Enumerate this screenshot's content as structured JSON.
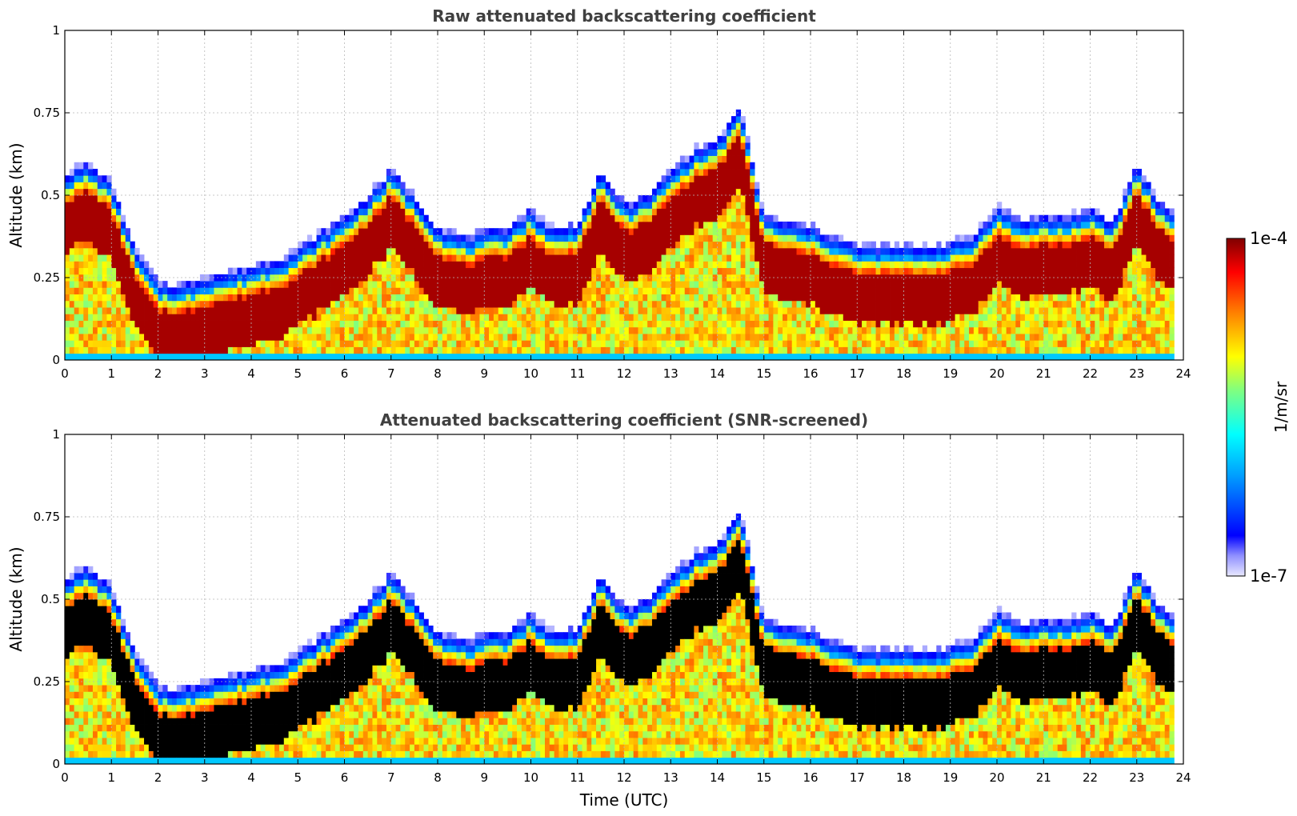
{
  "chart_data": [
    {
      "type": "heatmap",
      "title": "Raw attenuated backscattering coefficient",
      "xlabel": "",
      "ylabel": "Altitude (km)",
      "xlim": [
        0,
        24
      ],
      "ylim": [
        0,
        1
      ],
      "xticks": [
        "0",
        "1",
        "2",
        "3",
        "4",
        "5",
        "6",
        "7",
        "8",
        "9",
        "10",
        "11",
        "12",
        "13",
        "14",
        "15",
        "16",
        "17",
        "18",
        "19",
        "20",
        "21",
        "22",
        "23",
        "24"
      ],
      "yticks": [
        "0",
        "0.25",
        "0.5",
        "0.75",
        "1"
      ],
      "grid": true,
      "screened": false,
      "cloud_layer_top_km": {
        "x": [
          0,
          0.5,
          1,
          1.5,
          2,
          2.5,
          3,
          3.5,
          4,
          4.5,
          5,
          5.5,
          6,
          6.5,
          7,
          7.5,
          8,
          8.5,
          9,
          9.5,
          10,
          10.5,
          11,
          11.5,
          12,
          12.5,
          13,
          13.5,
          14,
          14.5,
          15,
          15.5,
          16,
          16.5,
          17,
          17.5,
          18,
          18.5,
          19,
          19.5,
          20,
          20.5,
          21,
          21.5,
          22,
          22.5,
          23,
          23.5,
          23.8
        ],
        "y": [
          0.55,
          0.58,
          0.52,
          0.32,
          0.22,
          0.21,
          0.24,
          0.25,
          0.27,
          0.29,
          0.32,
          0.37,
          0.42,
          0.48,
          0.56,
          0.48,
          0.39,
          0.36,
          0.37,
          0.39,
          0.44,
          0.38,
          0.4,
          0.55,
          0.46,
          0.48,
          0.56,
          0.62,
          0.65,
          0.75,
          0.42,
          0.4,
          0.39,
          0.36,
          0.33,
          0.33,
          0.33,
          0.33,
          0.34,
          0.36,
          0.45,
          0.41,
          0.42,
          0.42,
          0.44,
          0.4,
          0.58,
          0.46,
          0.43
        ]
      },
      "colorbar": {
        "label": "1/m/sr",
        "min": "1e-7",
        "max": "1e-4",
        "scale": "log",
        "colormap": "jet"
      }
    },
    {
      "type": "heatmap",
      "title": "Attenuated backscattering coefficient (SNR-screened)",
      "xlabel": "Time (UTC)",
      "ylabel": "Altitude (km)",
      "xlim": [
        0,
        24
      ],
      "ylim": [
        0,
        1
      ],
      "xticks": [
        "0",
        "1",
        "2",
        "3",
        "4",
        "5",
        "6",
        "7",
        "8",
        "9",
        "10",
        "11",
        "12",
        "13",
        "14",
        "15",
        "16",
        "17",
        "18",
        "19",
        "20",
        "21",
        "22",
        "23",
        "24"
      ],
      "yticks": [
        "0",
        "0.25",
        "0.5",
        "0.75",
        "1"
      ],
      "grid": true,
      "screened": true,
      "cloud_layer_top_km": {
        "x": [
          0,
          0.5,
          1,
          1.5,
          2,
          2.5,
          3,
          3.5,
          4,
          4.5,
          5,
          5.5,
          6,
          6.5,
          7,
          7.5,
          8,
          8.5,
          9,
          9.5,
          10,
          10.5,
          11,
          11.5,
          12,
          12.5,
          13,
          13.5,
          14,
          14.5,
          15,
          15.5,
          16,
          16.5,
          17,
          17.5,
          18,
          18.5,
          19,
          19.5,
          20,
          20.5,
          21,
          21.5,
          22,
          22.5,
          23,
          23.5,
          23.8
        ],
        "y": [
          0.55,
          0.58,
          0.52,
          0.32,
          0.22,
          0.21,
          0.24,
          0.25,
          0.27,
          0.29,
          0.32,
          0.37,
          0.42,
          0.48,
          0.56,
          0.48,
          0.39,
          0.36,
          0.37,
          0.39,
          0.44,
          0.38,
          0.4,
          0.55,
          0.46,
          0.48,
          0.56,
          0.62,
          0.65,
          0.75,
          0.42,
          0.4,
          0.39,
          0.36,
          0.33,
          0.33,
          0.33,
          0.33,
          0.34,
          0.36,
          0.45,
          0.41,
          0.42,
          0.42,
          0.44,
          0.4,
          0.58,
          0.46,
          0.43
        ]
      },
      "colorbar": {
        "label": "1/m/sr",
        "min": "1e-7",
        "max": "1e-4",
        "scale": "log",
        "colormap": "jet"
      }
    }
  ],
  "colors": {
    "max_colour": "#800000",
    "min_colour": "#e8e8ff",
    "saturated_screened": "#000000"
  }
}
